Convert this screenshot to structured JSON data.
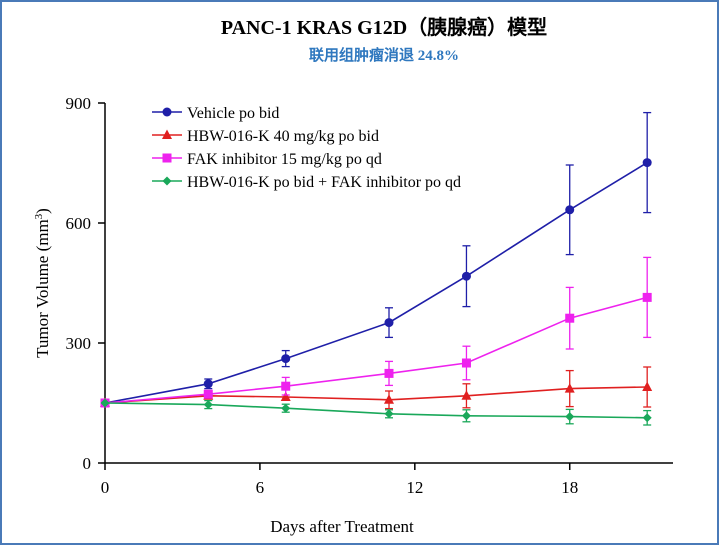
{
  "chart_data": {
    "type": "line",
    "title": "PANC-1 KRAS G12D（胰腺癌）模型",
    "subtitle": "联用组肿瘤消退 24.8%",
    "xlabel": "Days after Treatment",
    "ylabel_text": "Tumor Volume (mm",
    "ylabel_sup": "3",
    "ylabel_close": ")",
    "xlim": [
      0,
      22
    ],
    "ylim": [
      0,
      900
    ],
    "xticks": [
      "0",
      "6",
      "12",
      "18"
    ],
    "yticks": [
      "0",
      "300",
      "600",
      "900"
    ],
    "legend_position": "top-left",
    "grid": false,
    "series": [
      {
        "name": "Vehicle po bid",
        "color": "#1f1fa8",
        "marker": "circle",
        "x": [
          0,
          4,
          7,
          11,
          14,
          18,
          21
        ],
        "y": [
          150,
          198,
          261,
          351,
          467,
          633,
          751
        ],
        "err": [
          0,
          12,
          20,
          37,
          76,
          112,
          125
        ]
      },
      {
        "name": "HBW-016-K 40 mg/kg po bid",
        "color": "#e02020",
        "marker": "triangle",
        "x": [
          0,
          4,
          7,
          11,
          14,
          18,
          21
        ],
        "y": [
          150,
          168,
          165,
          158,
          168,
          186,
          190
        ],
        "err": [
          0,
          0,
          0,
          22,
          30,
          45,
          50
        ]
      },
      {
        "name": "FAK inhibitor 15 mg/kg po qd",
        "color": "#ee22ee",
        "marker": "square",
        "x": [
          0,
          4,
          7,
          11,
          14,
          18,
          21
        ],
        "y": [
          150,
          172,
          192,
          224,
          250,
          362,
          414
        ],
        "err": [
          0,
          0,
          22,
          30,
          42,
          77,
          100
        ]
      },
      {
        "name": "HBW-016-K po bid + FAK inhibitor po qd",
        "color": "#1aa85a",
        "marker": "diamond",
        "x": [
          0,
          4,
          7,
          11,
          14,
          18,
          21
        ],
        "y": [
          150,
          146,
          137,
          123,
          118,
          116,
          113
        ],
        "err": [
          0,
          10,
          10,
          10,
          15,
          18,
          18
        ]
      }
    ]
  }
}
